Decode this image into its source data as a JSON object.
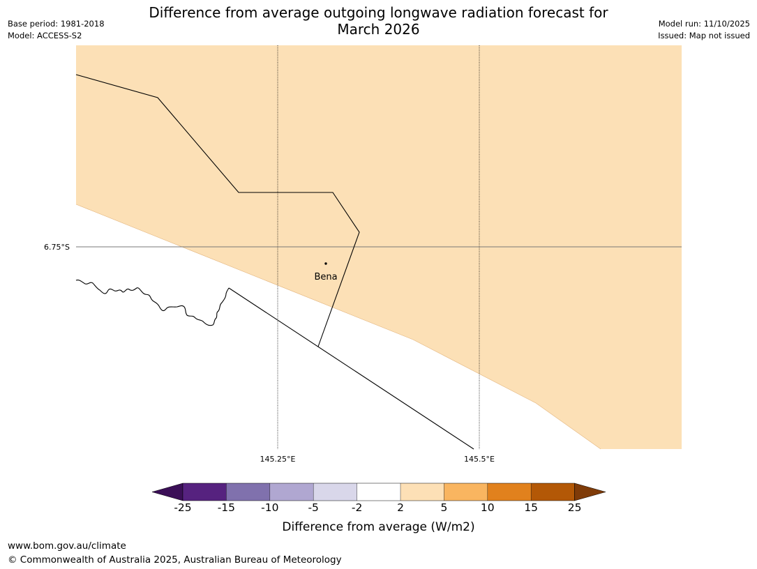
{
  "title": {
    "line1": "Difference from average outgoing longwave radiation forecast for",
    "line2": "March 2026"
  },
  "meta_left": {
    "base_period": "Base period: 1981-2018",
    "model": "Model: ACCESS-S2"
  },
  "meta_right": {
    "model_run": "Model run: 11/10/2025",
    "issued": "Issued: Map not issued"
  },
  "map": {
    "lat_label": "6.75°S",
    "lon_labels": [
      "145.25°E",
      "145.5°E"
    ],
    "place": "Bena",
    "colors": {
      "land_fill": "#fce0b6",
      "ocean": "#ffffff",
      "line": "#000000"
    }
  },
  "legend": {
    "title": "Difference from average (W/m2)",
    "ticks": [
      "-25",
      "-15",
      "-10",
      "-5",
      "-2",
      "2",
      "5",
      "10",
      "15",
      "25"
    ],
    "colors": [
      "#3b0f57",
      "#56227f",
      "#8071ad",
      "#b0a7d1",
      "#d9d7ea",
      "#ffffff",
      "#fde0b6",
      "#f9b560",
      "#e1811d",
      "#b35806",
      "#7f3b08"
    ]
  },
  "footer": {
    "url": "www.bom.gov.au/climate",
    "copyright": "© Commonwealth of Australia 2025, Australian Bureau of Meteorology"
  }
}
